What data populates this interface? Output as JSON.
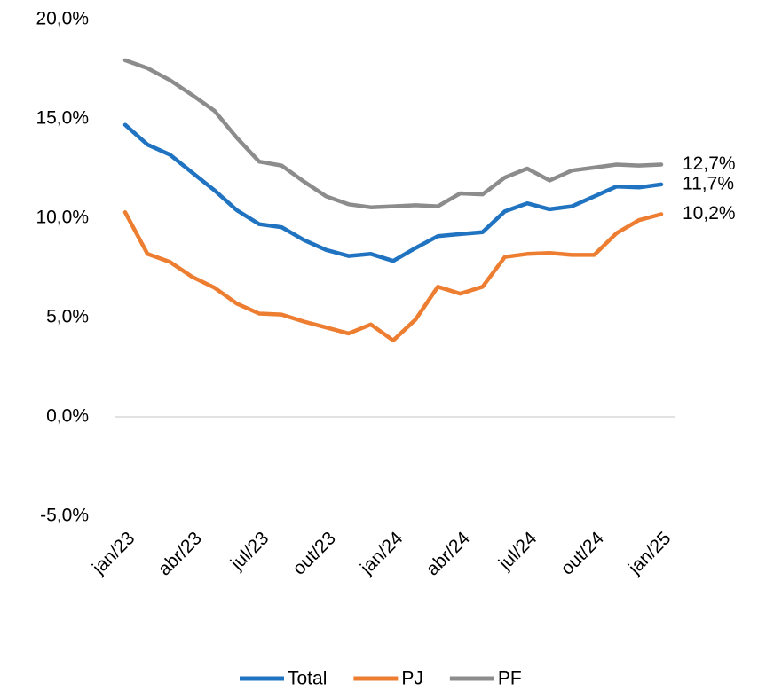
{
  "chart_data": {
    "type": "line",
    "categories": [
      "jan/23",
      null,
      null,
      "abr/23",
      null,
      null,
      "jul/23",
      null,
      null,
      "out/23",
      null,
      null,
      "jan/24",
      null,
      null,
      "abr/24",
      null,
      null,
      "jul/24",
      null,
      null,
      "out/24",
      null,
      null,
      "jan/25"
    ],
    "series": [
      {
        "name": "Total",
        "color": "#1f73c0",
        "values": [
          14.7,
          13.7,
          13.2,
          12.3,
          11.4,
          10.4,
          9.7,
          9.55,
          8.9,
          8.4,
          8.1,
          8.2,
          7.85,
          8.5,
          9.1,
          9.2,
          9.3,
          10.35,
          10.75,
          10.45,
          10.6,
          11.1,
          11.6,
          11.55,
          11.7
        ],
        "value_labels": [
          null,
          null,
          null,
          null,
          null,
          null,
          null,
          null,
          null,
          null,
          null,
          null,
          null,
          null,
          null,
          null,
          null,
          null,
          null,
          null,
          null,
          null,
          null,
          null,
          "11,7%"
        ]
      },
      {
        "name": "PJ",
        "color": "#ed7d31",
        "values": [
          10.3,
          8.2,
          7.8,
          7.05,
          6.5,
          5.7,
          5.2,
          5.15,
          4.8,
          4.5,
          4.2,
          4.65,
          3.85,
          4.9,
          6.55,
          6.2,
          6.55,
          8.05,
          8.2,
          8.25,
          8.15,
          8.15,
          9.25,
          9.9,
          10.2
        ],
        "value_labels": [
          null,
          null,
          null,
          null,
          null,
          null,
          null,
          null,
          null,
          null,
          null,
          null,
          null,
          null,
          null,
          null,
          null,
          null,
          null,
          null,
          null,
          null,
          null,
          null,
          "10,2%"
        ]
      },
      {
        "name": "PF",
        "color": "#8c8c8c",
        "values": [
          17.95,
          17.55,
          16.95,
          16.2,
          15.4,
          14.05,
          12.85,
          12.65,
          11.85,
          11.1,
          10.7,
          10.55,
          10.6,
          10.65,
          10.6,
          11.25,
          11.2,
          12.05,
          12.5,
          11.9,
          12.4,
          12.55,
          12.7,
          12.65,
          12.7
        ],
        "value_labels": [
          null,
          null,
          null,
          null,
          null,
          null,
          null,
          null,
          null,
          null,
          null,
          null,
          null,
          null,
          null,
          null,
          null,
          null,
          null,
          null,
          null,
          null,
          null,
          null,
          "12,7%"
        ]
      }
    ],
    "ylim": [
      -5,
      20
    ],
    "yticks": [
      {
        "value": -5,
        "label": "-5,0%"
      },
      {
        "value": 0,
        "label": "0,0%"
      },
      {
        "value": 5,
        "label": "5,0%"
      },
      {
        "value": 10,
        "label": "10,0%"
      },
      {
        "value": 15,
        "label": "15,0%"
      },
      {
        "value": 20,
        "label": "20,0%"
      }
    ],
    "zero_line": true,
    "legend": "bottom"
  }
}
